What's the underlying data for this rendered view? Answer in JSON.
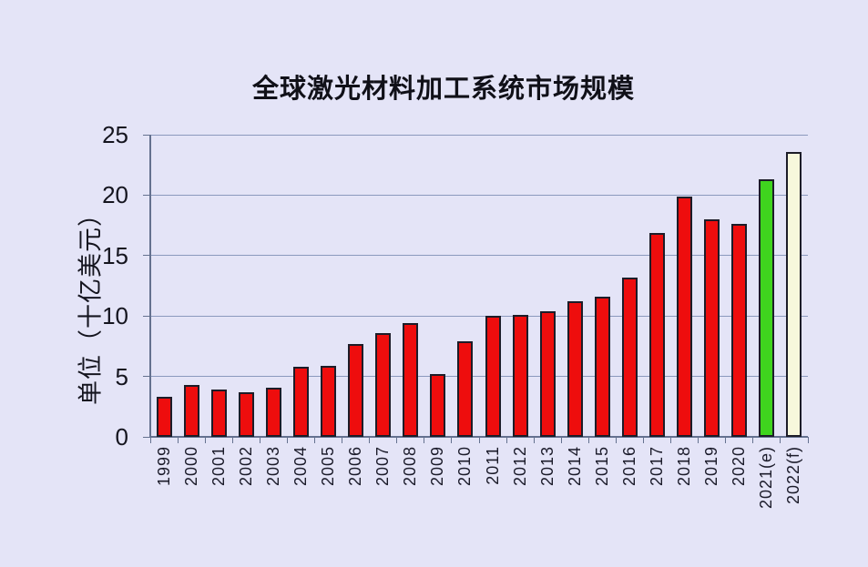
{
  "chart_data": {
    "type": "bar",
    "title": "全球激光材料加工系统市场规模",
    "ylabel": "单位（十亿美元）",
    "xlabel": "",
    "categories": [
      "1999",
      "2000",
      "2001",
      "2002",
      "2003",
      "2004",
      "2005",
      "2006",
      "2007",
      "2008",
      "2009",
      "2010",
      "2011",
      "2012",
      "2013",
      "2014",
      "2015",
      "2016",
      "2017",
      "2018",
      "2019",
      "2020",
      "2021(e)",
      "2022(f)"
    ],
    "values": [
      3.3,
      4.3,
      3.9,
      3.7,
      4.1,
      5.8,
      5.9,
      7.7,
      8.6,
      9.4,
      5.2,
      7.9,
      10.0,
      10.1,
      10.4,
      11.2,
      11.6,
      13.2,
      16.9,
      19.9,
      18.0,
      17.6,
      21.3,
      23.6
    ],
    "point_colors": [
      "#ee0d0d",
      "#ee0d0d",
      "#ee0d0d",
      "#ee0d0d",
      "#ee0d0d",
      "#ee0d0d",
      "#ee0d0d",
      "#ee0d0d",
      "#ee0d0d",
      "#ee0d0d",
      "#ee0d0d",
      "#ee0d0d",
      "#ee0d0d",
      "#ee0d0d",
      "#ee0d0d",
      "#ee0d0d",
      "#ee0d0d",
      "#ee0d0d",
      "#ee0d0d",
      "#ee0d0d",
      "#ee0d0d",
      "#ee0d0d",
      "#3fd41e",
      "#f7f8dc"
    ],
    "bar_outline_color": "#1c1c28",
    "ylim": [
      0,
      25
    ],
    "yticks": [
      0,
      5,
      10,
      15,
      20,
      25
    ],
    "grid": true,
    "legend_position": "none",
    "style": {
      "background_color": "#e4e4f7",
      "gridline_color": "#8b99bd",
      "axis_color": "#64718f",
      "text_color": "#15151f"
    }
  }
}
